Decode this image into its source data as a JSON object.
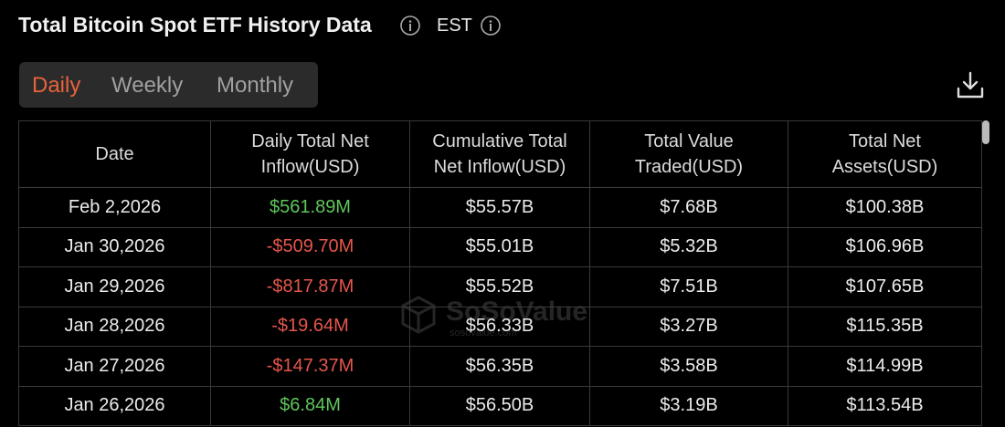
{
  "header": {
    "title": "Total Bitcoin Spot ETF History Data",
    "timezone": "EST"
  },
  "tabs": {
    "items": [
      "Daily",
      "Weekly",
      "Monthly"
    ],
    "active": 0
  },
  "watermark": {
    "name": "SoSoValue",
    "url": "sosovalue.com"
  },
  "table": {
    "columns": [
      [
        "Date"
      ],
      [
        "Daily Total Net",
        "Inflow(USD)"
      ],
      [
        "Cumulative Total",
        "Net Inflow(USD)"
      ],
      [
        "Total Value",
        "Traded(USD)"
      ],
      [
        "Total Net",
        "Assets(USD)"
      ]
    ],
    "rows": [
      [
        "Feb 2,2026",
        "$561.89M",
        "$55.57B",
        "$7.68B",
        "$100.38B"
      ],
      [
        "Jan 30,2026",
        "-$509.70M",
        "$55.01B",
        "$5.32B",
        "$106.96B"
      ],
      [
        "Jan 29,2026",
        "-$817.87M",
        "$55.52B",
        "$7.51B",
        "$107.65B"
      ],
      [
        "Jan 28,2026",
        "-$19.64M",
        "$56.33B",
        "$3.27B",
        "$115.35B"
      ],
      [
        "Jan 27,2026",
        "-$147.37M",
        "$56.35B",
        "$3.58B",
        "$114.99B"
      ],
      [
        "Jan 26,2026",
        "$6.84M",
        "$56.50B",
        "$3.19B",
        "$113.54B"
      ]
    ]
  }
}
